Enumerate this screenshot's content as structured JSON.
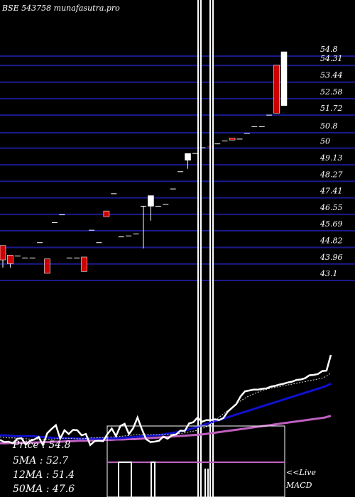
{
  "chart_data": {
    "type": "candlestick",
    "title": "BSE 543758 munafasutra.pro",
    "yticks": [
      54.8,
      54.31,
      53.44,
      52.58,
      51.72,
      50.8,
      50,
      49.13,
      48.27,
      47.41,
      46.55,
      45.69,
      44.82,
      43.96,
      43.1
    ],
    "ylim": [
      42.5,
      57.0
    ],
    "candles": [
      {
        "o": 44.7,
        "h": 44.7,
        "l": 43.55,
        "c": 43.95,
        "color": "red"
      },
      {
        "o": 44.2,
        "h": 44.2,
        "l": 43.55,
        "c": 43.75,
        "color": "red"
      },
      {
        "o": 44.15,
        "h": 44.15,
        "l": 44.15,
        "c": 44.15,
        "color": "white"
      },
      {
        "o": 44.05,
        "h": 44.05,
        "l": 44.05,
        "c": 44.05,
        "color": "white"
      },
      {
        "o": 44.05,
        "h": 44.05,
        "l": 44.05,
        "c": 44.05,
        "color": "white"
      },
      {
        "o": 44.85,
        "h": 44.85,
        "l": 44.85,
        "c": 44.85,
        "color": "white"
      },
      {
        "o": 44.0,
        "h": 44.0,
        "l": 43.25,
        "c": 43.25,
        "color": "red"
      },
      {
        "o": 45.9,
        "h": 45.9,
        "l": 45.9,
        "c": 45.9,
        "color": "white"
      },
      {
        "o": 46.3,
        "h": 46.3,
        "l": 46.3,
        "c": 46.3,
        "color": "white"
      },
      {
        "o": 44.05,
        "h": 44.05,
        "l": 44.05,
        "c": 44.05,
        "color": "white"
      },
      {
        "o": 44.05,
        "h": 44.05,
        "l": 44.05,
        "c": 44.05,
        "color": "white"
      },
      {
        "o": 44.1,
        "h": 44.1,
        "l": 43.35,
        "c": 43.35,
        "color": "red"
      },
      {
        "o": 45.5,
        "h": 45.5,
        "l": 45.5,
        "c": 45.5,
        "color": "white"
      },
      {
        "o": 44.85,
        "h": 44.85,
        "l": 44.85,
        "c": 44.85,
        "color": "white"
      },
      {
        "o": 46.5,
        "h": 46.5,
        "l": 46.2,
        "c": 46.2,
        "color": "red"
      },
      {
        "o": 47.4,
        "h": 47.4,
        "l": 47.4,
        "c": 47.4,
        "color": "white"
      },
      {
        "o": 45.15,
        "h": 45.15,
        "l": 45.15,
        "c": 45.15,
        "color": "white"
      },
      {
        "o": 45.2,
        "h": 45.2,
        "l": 45.2,
        "c": 45.2,
        "color": "white"
      },
      {
        "o": 45.3,
        "h": 45.3,
        "l": 45.3,
        "c": 45.3,
        "color": "white"
      },
      {
        "o": 46.75,
        "h": 46.75,
        "l": 44.55,
        "c": 46.75,
        "color": "white"
      },
      {
        "o": 46.75,
        "h": 47.3,
        "l": 46.0,
        "c": 47.3,
        "color": "white"
      },
      {
        "o": 46.75,
        "h": 46.75,
        "l": 46.75,
        "c": 46.75,
        "color": "white"
      },
      {
        "o": 46.85,
        "h": 46.85,
        "l": 46.85,
        "c": 46.85,
        "color": "white"
      },
      {
        "o": 47.65,
        "h": 47.65,
        "l": 47.65,
        "c": 47.65,
        "color": "white"
      },
      {
        "o": 48.55,
        "h": 48.55,
        "l": 48.55,
        "c": 48.55,
        "color": "white"
      },
      {
        "o": 49.15,
        "h": 49.5,
        "l": 48.7,
        "c": 49.5,
        "color": "white"
      },
      {
        "o": 49.5,
        "h": 49.5,
        "l": 49.5,
        "c": 49.5,
        "color": "white"
      },
      {
        "o": 49.8,
        "h": 49.8,
        "l": 49.8,
        "c": 49.8,
        "color": "white"
      },
      {
        "o": 49.85,
        "h": 49.85,
        "l": 49.85,
        "c": 49.85,
        "color": "red"
      },
      {
        "o": 50.0,
        "h": 50.0,
        "l": 50.0,
        "c": 50.0,
        "color": "white"
      },
      {
        "o": 50.15,
        "h": 50.15,
        "l": 50.15,
        "c": 50.15,
        "color": "white"
      },
      {
        "o": 50.3,
        "h": 50.3,
        "l": 50.2,
        "c": 50.2,
        "color": "red"
      },
      {
        "o": 50.25,
        "h": 50.25,
        "l": 50.25,
        "c": 50.25,
        "color": "white"
      },
      {
        "o": 50.55,
        "h": 50.55,
        "l": 50.55,
        "c": 50.55,
        "color": "white"
      },
      {
        "o": 50.9,
        "h": 50.9,
        "l": 50.9,
        "c": 50.9,
        "color": "white"
      },
      {
        "o": 50.9,
        "h": 50.9,
        "l": 50.9,
        "c": 50.9,
        "color": "white"
      },
      {
        "o": 51.5,
        "h": 51.5,
        "l": 51.5,
        "c": 51.5,
        "color": "white"
      },
      {
        "o": 54.1,
        "h": 54.1,
        "l": 51.6,
        "c": 51.6,
        "color": "red"
      },
      {
        "o": 52.0,
        "h": 54.8,
        "l": 52.0,
        "c": 54.8,
        "color": "white"
      }
    ],
    "indicators": {
      "price_line": [
        44.75,
        44.5,
        44.55,
        44.35,
        44.9,
        44.95,
        44.2,
        44.65,
        44.8,
        45.1,
        44.15,
        45.55,
        46.05,
        46.5,
        44.9,
        45.9,
        45.45,
        45.95,
        45.9,
        45.3,
        45.45,
        44.15,
        44.6,
        44.65,
        44.6,
        45.45,
        46.1,
        45.2,
        46.4,
        46.65,
        45.45,
        46.15,
        47.4,
        46.05,
        44.85,
        44.5,
        44.55,
        44.65,
        45.15,
        44.9,
        45.3,
        45.4,
        45.85,
        45.8,
        46.7,
        46.85,
        47.4,
        46.9,
        47.1,
        47.1,
        47.2,
        47.1,
        47.35,
        48.1,
        48.55,
        49.0,
        49.9,
        50.5,
        50.6,
        50.7,
        50.7,
        50.8,
        50.85,
        51.05,
        51.15,
        51.3,
        51.4,
        51.55,
        51.65,
        51.85,
        51.9,
        52.05,
        52.4,
        52.45,
        52.55,
        52.9,
        52.95,
        54.8
      ],
      "ma_dotted": [
        45.1,
        45.05,
        45.0,
        45.0,
        44.95,
        44.9,
        44.9,
        44.85,
        44.85,
        44.85,
        44.8,
        44.8,
        44.85,
        44.9,
        44.95,
        44.95,
        44.95,
        44.9,
        44.9,
        44.9,
        44.95,
        45.0,
        45.0,
        45.05,
        45.05,
        45.1,
        45.1,
        45.15,
        45.2,
        45.25,
        45.3,
        45.35,
        45.35,
        45.35,
        45.35,
        45.35,
        45.35,
        45.35,
        45.4,
        45.4,
        45.45,
        45.5,
        45.55,
        45.65,
        45.75,
        45.85,
        46.0,
        46.2,
        46.5,
        46.9,
        47.3,
        47.7,
        48.1,
        48.5,
        48.9,
        49.3,
        49.6,
        49.9,
        50.15,
        50.35,
        50.55,
        50.7,
        50.85,
        50.95,
        51.05,
        51.15,
        51.25,
        51.35,
        51.45,
        51.55,
        51.65,
        51.75,
        51.85,
        51.95,
        52.05,
        52.3,
        52.7
      ],
      "ma_blue": [
        45.3,
        45.3,
        45.25,
        45.2,
        45.2,
        45.2,
        45.2,
        45.15,
        45.1,
        45.05,
        45.0,
        45.0,
        44.95,
        44.95,
        44.95,
        44.9,
        44.9,
        44.9,
        44.9,
        44.9,
        44.95,
        44.95,
        44.95,
        45.0,
        45.05,
        45.1,
        45.15,
        45.2,
        45.25,
        45.3,
        45.35,
        45.45,
        45.55,
        45.65,
        45.8,
        45.95,
        46.1,
        46.3,
        46.5,
        46.7,
        46.9,
        47.1,
        47.3,
        47.5,
        47.7,
        47.9,
        48.1,
        48.3,
        48.5,
        48.7,
        48.9,
        49.1,
        49.3,
        49.5,
        49.7,
        49.9,
        50.1,
        50.3,
        50.5,
        50.7,
        50.9,
        51.1,
        51.4
      ],
      "ma_violet": [
        44.35,
        44.35,
        44.4,
        44.4,
        44.45,
        44.45,
        44.45,
        44.5,
        44.5,
        44.55,
        44.55,
        44.6,
        44.6,
        44.65,
        44.65,
        44.7,
        44.7,
        44.75,
        44.75,
        44.8,
        44.8,
        44.85,
        44.85,
        44.9,
        44.95,
        45.0,
        45.05,
        45.1,
        45.15,
        45.2,
        45.25,
        45.3,
        45.35,
        45.4,
        45.5,
        45.6,
        45.7,
        45.8,
        45.9,
        46.0,
        46.1,
        46.2,
        46.3,
        46.4,
        46.5,
        46.6,
        46.7,
        46.8,
        46.9,
        47.0,
        47.1,
        47.2,
        47.3,
        47.4,
        47.6
      ]
    },
    "legend": {
      "price": "Price   : 54.8",
      "ma5": "5MA : 52.7",
      "ma12": "12MA : 51.4",
      "ma50": "50MA : 47.6"
    },
    "macd_label": "<<Live\nMACD",
    "colors": {
      "background": "#000000",
      "grid": "#1a1a8c",
      "up": "#ffffff",
      "down": "#cc0000",
      "ma_blue": "#1010d0",
      "ma_violet": "#c060c0"
    }
  }
}
